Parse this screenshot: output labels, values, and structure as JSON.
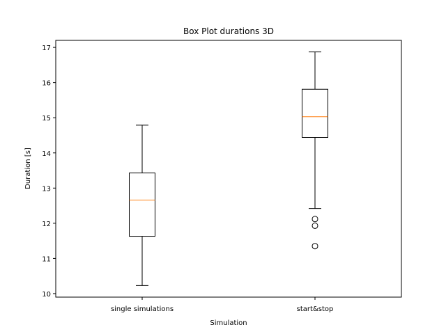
{
  "chart_data": {
    "type": "box",
    "title": "Box Plot durations 3D",
    "xlabel": "Simulation",
    "ylabel": "Duration [s]",
    "ylim": [
      9.9,
      17.2
    ],
    "yticks": [
      10,
      11,
      12,
      13,
      14,
      15,
      16,
      17
    ],
    "grid": false,
    "categories": [
      "single simulations",
      "start&stop"
    ],
    "boxes": [
      {
        "category": "single simulations",
        "whisker_low": 10.23,
        "q1": 11.63,
        "median": 12.66,
        "q3": 13.43,
        "whisker_high": 14.79,
        "outliers": []
      },
      {
        "category": "start&stop",
        "whisker_low": 12.42,
        "q1": 14.44,
        "median": 15.03,
        "q3": 15.81,
        "whisker_high": 16.87,
        "outliers": [
          12.12,
          11.93,
          11.35
        ]
      }
    ],
    "colors": {
      "box": "#000000",
      "median": "#ff7f0e",
      "outlier": "#000000"
    }
  }
}
